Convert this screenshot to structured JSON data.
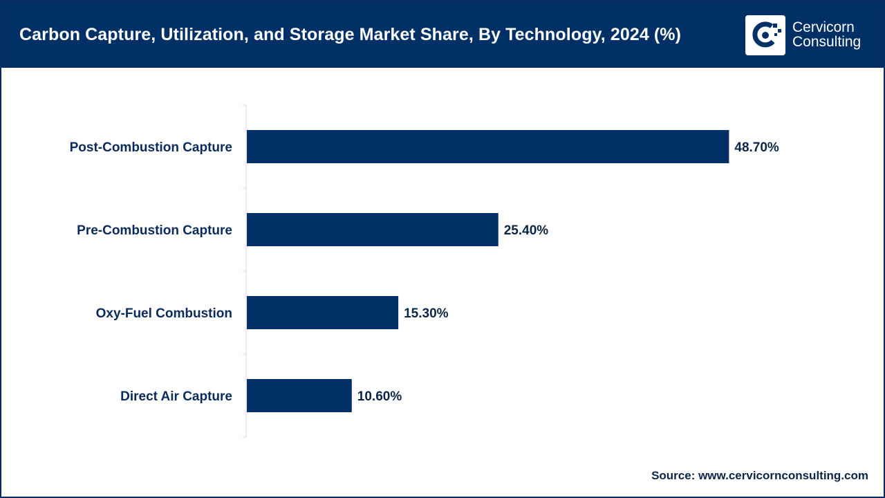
{
  "header": {
    "title": "Carbon Capture, Utilization, and Storage Market Share, By Technology, 2024 (%)"
  },
  "logo": {
    "line1": "Cervicorn",
    "line2": "Consulting"
  },
  "source": "Source: www.cervicornconsulting.com",
  "colors": {
    "header_bg": "#003066",
    "bar": "#003066",
    "accent": "#0a2a66"
  },
  "chart_data": {
    "type": "bar",
    "orientation": "horizontal",
    "title": "Carbon Capture, Utilization, and Storage Market Share, By Technology, 2024 (%)",
    "categories": [
      "Post-Combustion Capture",
      "Pre-Combustion Capture",
      "Oxy-Fuel Combustion",
      "Direct Air Capture"
    ],
    "values": [
      48.7,
      25.4,
      15.3,
      10.6
    ],
    "value_labels": [
      "48.70%",
      "25.40%",
      "15.30%",
      "10.60%"
    ],
    "xlabel": "",
    "ylabel": "",
    "xlim": [
      0,
      50
    ],
    "grid": false,
    "legend": "none"
  }
}
